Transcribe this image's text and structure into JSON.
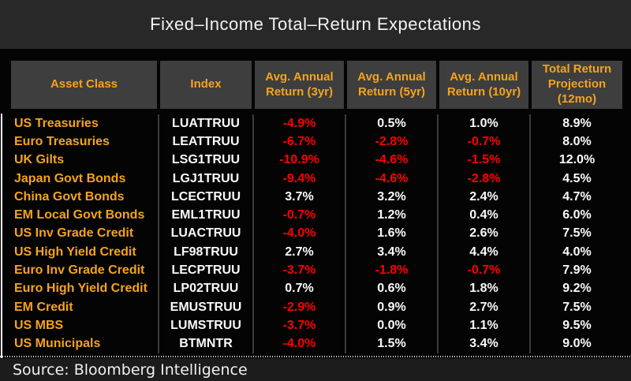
{
  "title": "Fixed–Income Total–Return Expectations",
  "footer": {
    "source_label": "Source: Bloomberg Intelligence"
  },
  "colors": {
    "accent_orange": "#f5a31c",
    "negative_red": "#ff0000",
    "value_white": "#fafafa",
    "title_bar_bg": "#282828",
    "header_cell_bg": "#3e3e3e",
    "table_bg": "#040404",
    "footer_bg": "#1c1c1c"
  },
  "chart_data": {
    "type": "table",
    "title": "Fixed–Income Total–Return Expectations",
    "columns": [
      "Asset Class",
      "Index",
      "Avg. Annual Return (3yr)",
      "Avg. Annual Return (5yr)",
      "Avg. Annual Return (10yr)",
      "Total Return Projection (12mo)"
    ],
    "rows": [
      [
        "US Treasuries",
        "LUATTRUU",
        "-4.9%",
        "0.5%",
        "1.0%",
        "8.9%"
      ],
      [
        "Euro Treasuries",
        "LEATTRUU",
        "-6.7%",
        "-2.8%",
        "-0.7%",
        "8.0%"
      ],
      [
        "UK Gilts",
        "LSG1TRUU",
        "-10.9%",
        "-4.6%",
        "-1.5%",
        "12.0%"
      ],
      [
        "Japan Govt Bonds",
        "LGJ1TRUU",
        "-9.4%",
        "-4.6%",
        "-2.8%",
        "4.5%"
      ],
      [
        "China Govt Bonds",
        "LCECTRUU",
        "3.7%",
        "3.2%",
        "2.4%",
        "4.7%"
      ],
      [
        "EM Local Govt Bonds",
        "EML1TRUU",
        "-0.7%",
        "1.2%",
        "0.4%",
        "6.0%"
      ],
      [
        "US Inv Grade Credit",
        "LUACTRUU",
        "-4.0%",
        "1.6%",
        "2.6%",
        "7.5%"
      ],
      [
        "US High Yield Credit",
        "LF98TRUU",
        "2.7%",
        "3.4%",
        "4.4%",
        "4.0%"
      ],
      [
        "Euro Inv Grade Credit",
        "LECPTRUU",
        "-3.7%",
        "-1.8%",
        "-0.7%",
        "7.9%"
      ],
      [
        "Euro High Yield Credit",
        "LP02TRUU",
        "0.7%",
        "0.6%",
        "1.8%",
        "9.2%"
      ],
      [
        "EM Credit",
        "EMUSTRUU",
        "-2.9%",
        "0.9%",
        "2.7%",
        "7.5%"
      ],
      [
        "US MBS",
        "LUMSTRUU",
        "-3.7%",
        "0.0%",
        "1.1%",
        "9.5%"
      ],
      [
        "US Municipals",
        "BTMNTR",
        "-4.0%",
        "1.5%",
        "3.4%",
        "9.0%"
      ]
    ],
    "value_color_rule": "negative values shown in red, non-negative in white",
    "grid": "thin vertical column dividers only",
    "legend_position": "none"
  }
}
